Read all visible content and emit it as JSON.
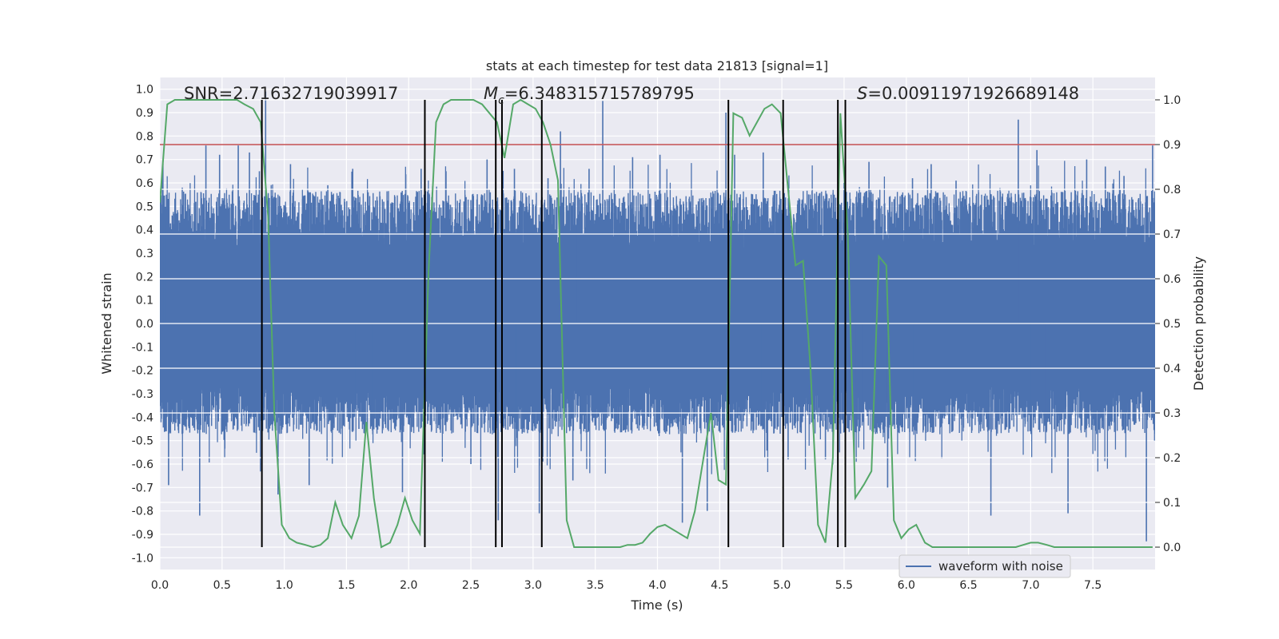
{
  "chart_data": {
    "type": "line",
    "title": "stats at each timestep for test data 21813 [signal=1]",
    "xlabel": "Time (s)",
    "ylabel_left": "Whitened strain",
    "ylabel_right": "Detection probability",
    "xlim": [
      0.0,
      8.0
    ],
    "ylim_left": [
      -1.05,
      1.05
    ],
    "ylim_right": [
      -0.05,
      1.05
    ],
    "x_ticks": [
      "0.0",
      "0.5",
      "1.0",
      "1.5",
      "2.0",
      "2.5",
      "3.0",
      "3.5",
      "4.0",
      "4.5",
      "5.0",
      "5.5",
      "6.0",
      "6.5",
      "7.0",
      "7.5"
    ],
    "y_left_ticks": [
      "-1.0",
      "-0.9",
      "-0.8",
      "-0.7",
      "-0.6",
      "-0.5",
      "-0.4",
      "-0.3",
      "-0.2",
      "-0.1",
      "0.0",
      "0.1",
      "0.2",
      "0.3",
      "0.4",
      "0.5",
      "0.6",
      "0.7",
      "0.8",
      "0.9",
      "1.0"
    ],
    "y_right_ticks": [
      "0.0",
      "0.1",
      "0.2",
      "0.3",
      "0.4",
      "0.5",
      "0.6",
      "0.7",
      "0.8",
      "0.9",
      "1.0"
    ],
    "grid": true,
    "legend_position": "lower-right",
    "annotations": {
      "snr": "SNR=2.71632719039917",
      "mc_symbol": "M",
      "mc_sub": "c",
      "mc_value": "=6.348315715789795",
      "s_symbol": "S",
      "s_value": "=0.00911971926689148"
    },
    "threshold": {
      "value": 0.9,
      "axis": "right",
      "color": "#c44e52"
    },
    "vlines_x": [
      0.82,
      2.13,
      2.7,
      2.75,
      3.07,
      4.57,
      5.01,
      5.45,
      5.51
    ],
    "vlines_range_right": [
      0.0,
      1.0
    ],
    "colors": {
      "waveform": "#4c72b0",
      "probability": "#55a868",
      "vlines": "#000000",
      "plot_bg": "#eaeaf2",
      "grid": "#ffffff"
    },
    "series": [
      {
        "name": "waveform with noise",
        "axis": "left",
        "summary": {
          "x_range": [
            0.0,
            8.0
          ],
          "typical_max": 0.42,
          "typical_min": -0.35
        },
        "peaks": [
          [
            0.02,
            0.63
          ],
          [
            0.07,
            -0.69
          ],
          [
            0.18,
            0.58
          ],
          [
            0.32,
            -0.82
          ],
          [
            0.37,
            0.76
          ],
          [
            0.48,
            0.72
          ],
          [
            0.63,
            0.76
          ],
          [
            0.72,
            0.73
          ],
          [
            0.8,
            0.65
          ],
          [
            0.85,
            0.99
          ],
          [
            0.95,
            -0.73
          ],
          [
            1.05,
            0.68
          ],
          [
            1.2,
            -0.69
          ],
          [
            1.35,
            0.59
          ],
          [
            1.55,
            0.66
          ],
          [
            1.6,
            -0.45
          ],
          [
            1.8,
            0.52
          ],
          [
            1.95,
            -0.72
          ],
          [
            2.1,
            0.66
          ],
          [
            2.3,
            0.65
          ],
          [
            2.5,
            -0.6
          ],
          [
            2.63,
            0.7
          ],
          [
            2.72,
            -0.84
          ],
          [
            2.85,
            0.66
          ],
          [
            3.05,
            -0.81
          ],
          [
            3.12,
            0.62
          ],
          [
            3.22,
            0.82
          ],
          [
            3.32,
            -0.67
          ],
          [
            3.45,
            0.66
          ],
          [
            3.56,
            0.95
          ],
          [
            3.8,
            0.71
          ],
          [
            4.02,
            0.72
          ],
          [
            4.2,
            -0.85
          ],
          [
            4.4,
            -0.8
          ],
          [
            4.55,
            0.9
          ],
          [
            4.62,
            0.72
          ],
          [
            4.85,
            0.73
          ],
          [
            5.05,
            -0.58
          ],
          [
            5.35,
            -0.58
          ],
          [
            5.5,
            0.6
          ],
          [
            5.7,
            0.69
          ],
          [
            5.85,
            -0.7
          ],
          [
            6.05,
            0.62
          ],
          [
            6.2,
            0.68
          ],
          [
            6.4,
            0.61
          ],
          [
            6.68,
            -0.82
          ],
          [
            6.9,
            0.87
          ],
          [
            7.05,
            0.74
          ],
          [
            7.3,
            -0.81
          ],
          [
            7.45,
            0.7
          ],
          [
            7.6,
            0.67
          ],
          [
            7.75,
            0.63
          ],
          [
            7.93,
            -0.93
          ],
          [
            7.98,
            0.76
          ]
        ]
      },
      {
        "name": "detection probability",
        "axis": "right",
        "x": [
          0.0,
          0.06,
          0.12,
          0.18,
          0.25,
          0.31,
          0.37,
          0.43,
          0.5,
          0.56,
          0.62,
          0.68,
          0.75,
          0.81,
          0.87,
          0.92,
          0.98,
          1.04,
          1.1,
          1.17,
          1.23,
          1.29,
          1.35,
          1.41,
          1.47,
          1.54,
          1.6,
          1.66,
          1.72,
          1.78,
          1.85,
          1.91,
          1.97,
          2.03,
          2.09,
          2.16,
          2.22,
          2.28,
          2.34,
          2.4,
          2.46,
          2.52,
          2.59,
          2.65,
          2.71,
          2.77,
          2.84,
          2.9,
          2.96,
          3.02,
          3.08,
          3.14,
          3.2,
          3.27,
          3.33,
          3.39,
          3.45,
          3.51,
          3.57,
          3.63,
          3.7,
          3.76,
          3.82,
          3.88,
          3.94,
          4.0,
          4.06,
          4.12,
          4.18,
          4.24,
          4.3,
          4.37,
          4.43,
          4.49,
          4.55,
          4.61,
          4.68,
          4.74,
          4.8,
          4.86,
          4.92,
          4.99,
          5.05,
          5.11,
          5.17,
          5.23,
          5.29,
          5.35,
          5.41,
          5.47,
          5.53,
          5.59,
          5.66,
          5.72,
          5.78,
          5.84,
          5.9,
          5.96,
          6.02,
          6.08,
          6.15,
          6.21,
          6.27,
          6.33,
          6.39,
          6.45,
          6.51,
          6.57,
          6.64,
          6.7,
          6.76,
          6.82,
          6.88,
          6.94,
          7.0,
          7.06,
          7.13,
          7.19,
          7.25,
          7.31,
          7.37,
          7.43,
          7.49,
          7.55,
          7.62,
          7.68,
          7.74,
          7.8,
          7.86,
          7.92,
          7.98
        ],
        "values": [
          0.77,
          0.99,
          1.0,
          1.0,
          1.0,
          1.0,
          1.0,
          1.0,
          1.0,
          1.0,
          1.0,
          0.99,
          0.98,
          0.95,
          0.74,
          0.3,
          0.05,
          0.02,
          0.01,
          0.005,
          0.0,
          0.005,
          0.02,
          0.1,
          0.05,
          0.02,
          0.07,
          0.28,
          0.11,
          0.0,
          0.01,
          0.05,
          0.11,
          0.06,
          0.03,
          0.62,
          0.95,
          0.99,
          1.0,
          1.0,
          1.0,
          1.0,
          0.99,
          0.97,
          0.95,
          0.87,
          0.99,
          1.0,
          0.99,
          0.98,
          0.95,
          0.9,
          0.82,
          0.06,
          0.0,
          0.0,
          0.0,
          0.0,
          0.0,
          0.0,
          0.0,
          0.005,
          0.005,
          0.01,
          0.03,
          0.045,
          0.05,
          0.04,
          0.03,
          0.02,
          0.08,
          0.2,
          0.3,
          0.15,
          0.14,
          0.97,
          0.96,
          0.92,
          0.95,
          0.98,
          0.99,
          0.97,
          0.8,
          0.63,
          0.64,
          0.4,
          0.05,
          0.01,
          0.2,
          0.97,
          0.7,
          0.11,
          0.14,
          0.17,
          0.65,
          0.63,
          0.06,
          0.02,
          0.04,
          0.05,
          0.01,
          0.0,
          0.0,
          0.0,
          0.0,
          0.0,
          0.0,
          0.0,
          0.0,
          0.0,
          0.0,
          0.0,
          0.0,
          0.005,
          0.01,
          0.01,
          0.005,
          0.0,
          0.0,
          0.0,
          0.0,
          0.0,
          0.0,
          0.0,
          0.0,
          0.0,
          0.0,
          0.0,
          0.0,
          0.0,
          0.0
        ]
      }
    ],
    "legend_label": "waveform with noise"
  }
}
